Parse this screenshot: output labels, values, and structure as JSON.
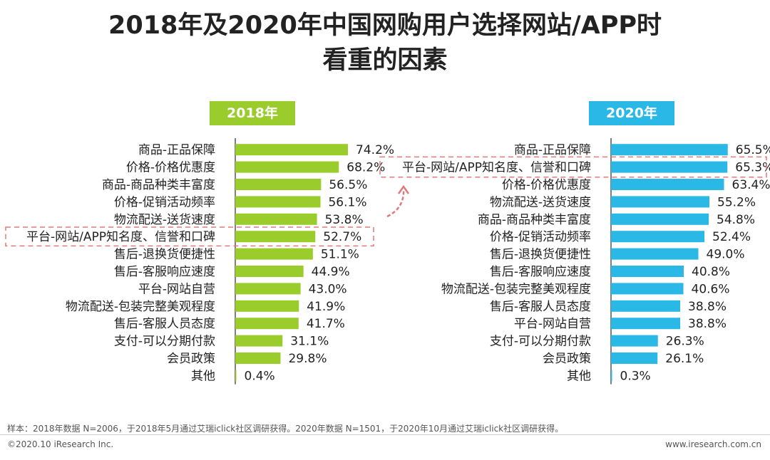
{
  "title": {
    "line1": "2018年及2020年中国网购用户选择网站/APP时",
    "line2": "看重的因素"
  },
  "colors": {
    "panel_2018": "#9acd2c",
    "panel_2020": "#2ab9e6",
    "axis": "#555555",
    "highlight": "#e07a7a"
  },
  "chart_data": [
    {
      "type": "bar",
      "orientation": "horizontal",
      "title": "2018年",
      "categories": [
        "商品-正品保障",
        "价格-价格优惠度",
        "商品-商品种类丰富度",
        "价格-促销活动频率",
        "物流配送-送货速度",
        "平台-网站/APP知名度、信誉和口碑",
        "售后-退换货便捷性",
        "售后-客服响应速度",
        "平台-网站自营",
        "物流配送-包装完整美观程度",
        "售后-客服人员态度",
        "支付-可以分期付款",
        "会员政策",
        "其他"
      ],
      "values": [
        74.2,
        68.2,
        56.5,
        56.1,
        53.8,
        52.7,
        51.1,
        44.9,
        43.0,
        41.9,
        41.7,
        31.1,
        29.8,
        0.4
      ],
      "value_labels": [
        "74.2%",
        "68.2%",
        "56.5%",
        "56.1%",
        "53.8%",
        "52.7%",
        "51.1%",
        "44.9%",
        "43.0%",
        "41.9%",
        "41.7%",
        "31.1%",
        "29.8%",
        "0.4%"
      ],
      "unit": "%",
      "highlight_category": "平台-网站/APP知名度、信誉和口碑"
    },
    {
      "type": "bar",
      "orientation": "horizontal",
      "title": "2020年",
      "categories": [
        "商品-正品保障",
        "平台-网站/APP知名度、信誉和口碑",
        "价格-价格优惠度",
        "物流配送-送货速度",
        "商品-商品种类丰富度",
        "价格-促销活动频率",
        "售后-退换货便捷性",
        "售后-客服响应速度",
        "物流配送-包装完整美观程度",
        "售后-客服人员态度",
        "平台-网站自营",
        "支付-可以分期付款",
        "会员政策",
        "其他"
      ],
      "values": [
        65.5,
        65.3,
        63.4,
        55.2,
        54.8,
        52.4,
        49.0,
        40.8,
        40.6,
        38.8,
        38.8,
        26.3,
        26.1,
        0.3
      ],
      "value_labels": [
        "65.5%",
        "65.3%",
        "63.4%",
        "55.2%",
        "54.8%",
        "52.4%",
        "49.0%",
        "40.8%",
        "40.6%",
        "38.8%",
        "38.8%",
        "26.3%",
        "26.1%",
        "0.3%"
      ],
      "unit": "%",
      "highlight_category": "平台-网站/APP知名度、信誉和口碑"
    }
  ],
  "footer": {
    "note": "样本：2018年数据 N=2006，于2018年5月通过艾瑞iclick社区调研获得。2020年数据 N=1501，于2020年10月通过艾瑞iclick社区调研获得。",
    "copyright": "©2020.10 iResearch Inc.",
    "website": "www.iresearch.com.cn"
  }
}
